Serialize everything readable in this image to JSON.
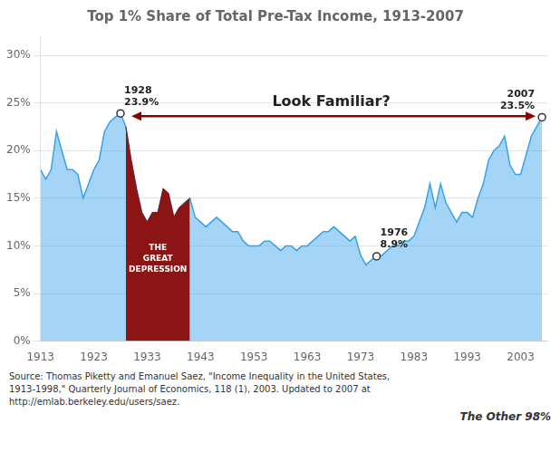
{
  "chart_data": {
    "type": "area",
    "title": "Top 1% Share of Total Pre-Tax Income, 1913-2007",
    "x": [
      1913,
      1914,
      1915,
      1916,
      1917,
      1918,
      1919,
      1920,
      1921,
      1922,
      1923,
      1924,
      1925,
      1926,
      1927,
      1928,
      1929,
      1930,
      1931,
      1932,
      1933,
      1934,
      1935,
      1936,
      1937,
      1938,
      1939,
      1940,
      1941,
      1942,
      1943,
      1944,
      1945,
      1946,
      1947,
      1948,
      1949,
      1950,
      1951,
      1952,
      1953,
      1954,
      1955,
      1956,
      1957,
      1958,
      1959,
      1960,
      1961,
      1962,
      1963,
      1964,
      1965,
      1966,
      1967,
      1968,
      1969,
      1970,
      1971,
      1972,
      1973,
      1974,
      1975,
      1976,
      1977,
      1978,
      1979,
      1980,
      1981,
      1982,
      1983,
      1984,
      1985,
      1986,
      1987,
      1988,
      1989,
      1990,
      1991,
      1992,
      1993,
      1994,
      1995,
      1996,
      1997,
      1998,
      1999,
      2000,
      2001,
      2002,
      2003,
      2004,
      2005,
      2006,
      2007
    ],
    "values": [
      18.0,
      17.0,
      18.0,
      22.0,
      20.0,
      18.0,
      18.0,
      17.5,
      15.0,
      16.5,
      18.0,
      19.0,
      22.0,
      23.0,
      23.5,
      23.9,
      22.5,
      19.0,
      16.0,
      13.5,
      12.5,
      13.5,
      13.5,
      16.0,
      15.5,
      13.0,
      14.0,
      14.5,
      15.0,
      13.0,
      12.5,
      12.0,
      12.5,
      13.0,
      12.5,
      12.0,
      11.5,
      11.5,
      10.5,
      10.0,
      10.0,
      10.0,
      10.5,
      10.5,
      10.0,
      9.5,
      10.0,
      10.0,
      9.5,
      10.0,
      10.0,
      10.5,
      11.0,
      11.5,
      11.5,
      12.0,
      11.5,
      11.0,
      10.5,
      11.0,
      9.0,
      8.0,
      8.5,
      8.9,
      9.0,
      9.5,
      10.0,
      10.0,
      10.5,
      10.5,
      11.0,
      12.5,
      14.0,
      16.5,
      14.0,
      16.5,
      14.5,
      13.5,
      12.5,
      13.5,
      13.5,
      13.0,
      15.0,
      16.5,
      19.0,
      20.0,
      20.5,
      21.5,
      18.5,
      17.5,
      17.5,
      19.5,
      21.5,
      22.5,
      23.5
    ],
    "xlim": [
      1913,
      2008
    ],
    "xticks": [
      1913,
      1923,
      1933,
      1943,
      1953,
      1963,
      1973,
      1983,
      1993,
      2003
    ],
    "ylim": [
      0,
      32
    ],
    "yticks": [
      {
        "value": 0,
        "label": "0%"
      },
      {
        "value": 5,
        "label": "5%"
      },
      {
        "value": 10,
        "label": "10%"
      },
      {
        "value": 15,
        "label": "15%"
      },
      {
        "value": 20,
        "label": "20%"
      },
      {
        "value": 25,
        "label": "25%"
      },
      {
        "value": 30,
        "label": "30%"
      }
    ],
    "grid": "y",
    "highlight": {
      "from": 1929,
      "to": 1941,
      "color": "#8b1515",
      "label": "THE\nGREAT\nDEPRESSION"
    },
    "annotations": [
      {
        "x": 1928,
        "y": 23.9,
        "text": "1928\n23.9%"
      },
      {
        "x": 1976,
        "y": 8.9,
        "text": "1976\n8.9%"
      },
      {
        "x": 2007,
        "y": 23.5,
        "text": "2007\n23.5%"
      }
    ],
    "arrow": {
      "from": 1928,
      "to": 2007,
      "text": "Look Familiar?",
      "color": "#8b0000"
    },
    "source": [
      "Source: Thomas Piketty and Emanuel Saez, \"Income Inequality in the United States,",
      "1913-1998,\" Quarterly Journal of Economics, 118 (1), 2003. Updated to 2007 at",
      "http://emlab.berkeley.edu/users/saez."
    ],
    "watermark": "The Other 98%"
  }
}
